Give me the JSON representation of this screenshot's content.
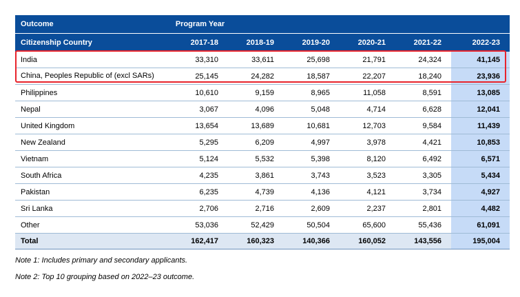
{
  "header": {
    "outcome_label": "Outcome",
    "program_year_label": "Program Year",
    "country_label": "Citizenship Country",
    "years": [
      "2017-18",
      "2018-19",
      "2019-20",
      "2020-21",
      "2021-22",
      "2022-23"
    ]
  },
  "rows": [
    {
      "country": "India",
      "values": [
        "33,310",
        "33,611",
        "25,698",
        "21,791",
        "24,324",
        "41,145"
      ]
    },
    {
      "country": "China, Peoples Republic of (excl SARs)",
      "values": [
        "25,145",
        "24,282",
        "18,587",
        "22,207",
        "18,240",
        "23,936"
      ]
    },
    {
      "country": "Philippines",
      "values": [
        "10,610",
        "9,159",
        "8,965",
        "11,058",
        "8,591",
        "13,085"
      ]
    },
    {
      "country": "Nepal",
      "values": [
        "3,067",
        "4,096",
        "5,048",
        "4,714",
        "6,628",
        "12,041"
      ]
    },
    {
      "country": "United Kingdom",
      "values": [
        "13,654",
        "13,689",
        "10,681",
        "12,703",
        "9,584",
        "11,439"
      ]
    },
    {
      "country": "New Zealand",
      "values": [
        "5,295",
        "6,209",
        "4,997",
        "3,978",
        "4,421",
        "10,853"
      ]
    },
    {
      "country": "Vietnam",
      "values": [
        "5,124",
        "5,532",
        "5,398",
        "8,120",
        "6,492",
        "6,571"
      ]
    },
    {
      "country": "South Africa",
      "values": [
        "4,235",
        "3,861",
        "3,743",
        "3,523",
        "3,305",
        "5,434"
      ]
    },
    {
      "country": "Pakistan",
      "values": [
        "6,235",
        "4,739",
        "4,136",
        "4,121",
        "3,734",
        "4,927"
      ]
    },
    {
      "country": "Sri Lanka",
      "values": [
        "2,706",
        "2,716",
        "2,609",
        "2,237",
        "2,801",
        "4,482"
      ]
    },
    {
      "country": "Other",
      "values": [
        "53,036",
        "52,429",
        "50,504",
        "65,600",
        "55,436",
        "61,091"
      ]
    }
  ],
  "total": {
    "label": "Total",
    "values": [
      "162,417",
      "160,323",
      "140,366",
      "160,052",
      "143,556",
      "195,004"
    ]
  },
  "notes": [
    "Note 1: Includes primary and secondary applicants.",
    "Note 2: Top 10 grouping based on 2022–23 outcome."
  ],
  "colors": {
    "header_bg": "#0a4d9a",
    "highlight_col": "#c6dbf7",
    "total_bg": "#dde7f3",
    "red_box": "#e8232b"
  }
}
